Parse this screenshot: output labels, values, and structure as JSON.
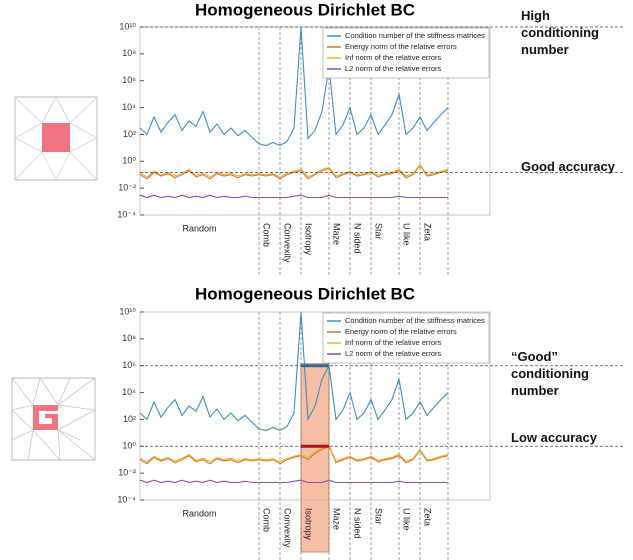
{
  "chart_data": [
    {
      "type": "line",
      "title": "Homogeneous Dirichlet BC",
      "ylog": true,
      "grid": false,
      "xlim": [
        0,
        100
      ],
      "ylim": [
        0.0001,
        10000000000
      ],
      "yticks": [
        {
          "value": 0.0001,
          "label": "10⁻⁴"
        },
        {
          "value": 0.01,
          "label": "10⁻²"
        },
        {
          "value": 1,
          "label": "10⁰"
        },
        {
          "value": 100,
          "label": "10²"
        },
        {
          "value": 10000,
          "label": "10⁴"
        },
        {
          "value": 1000000,
          "label": "10⁶"
        },
        {
          "value": 100000000,
          "label": "10⁸"
        },
        {
          "value": 10000000000,
          "label": "10¹⁰"
        }
      ],
      "legend": "top-right",
      "sections": {
        "labels": [
          "Random",
          "Comb",
          "Convexity",
          "Isotropy",
          "Maze",
          "N sided",
          "Star",
          "U like",
          "Zeta"
        ],
        "bounds": [
          34,
          40,
          46,
          54,
          60,
          66,
          74,
          80,
          88
        ]
      },
      "x": [
        0,
        2,
        4,
        6,
        8,
        10,
        12,
        14,
        16,
        18,
        20,
        22,
        24,
        26,
        28,
        30,
        32,
        34,
        36,
        38,
        40,
        42,
        44,
        46,
        48,
        50,
        52,
        54,
        56,
        58,
        60,
        62,
        64,
        66,
        68,
        70,
        72,
        74,
        76,
        78,
        80,
        82,
        84,
        86,
        88
      ],
      "series": [
        {
          "name": "Condition number of the stiffness matrices",
          "color": "#3d8ec4",
          "values": [
            300,
            100,
            2000,
            150,
            800,
            3000,
            200,
            1000,
            400,
            5000,
            150,
            600,
            100,
            300,
            80,
            200,
            60,
            20,
            15,
            25,
            15,
            30,
            300,
            10000000000,
            50,
            200,
            5000,
            10000000,
            100,
            500,
            10000,
            100,
            300,
            3000,
            100,
            500,
            3000,
            100000,
            100,
            300,
            2000,
            200,
            800,
            3000,
            10000
          ]
        },
        {
          "name": "Energy norm of the relative errors",
          "color": "#d9742b",
          "values": [
            0.1,
            0.05,
            0.15,
            0.08,
            0.12,
            0.06,
            0.1,
            0.2,
            0.07,
            0.1,
            0.05,
            0.12,
            0.08,
            0.1,
            0.06,
            0.1,
            0.08,
            0.1,
            0.08,
            0.1,
            0.05,
            0.1,
            0.15,
            0.2,
            0.05,
            0.1,
            0.2,
            0.3,
            0.06,
            0.1,
            0.15,
            0.08,
            0.1,
            0.15,
            0.07,
            0.1,
            0.12,
            0.2,
            0.06,
            0.1,
            0.5,
            0.08,
            0.1,
            0.15,
            0.2
          ]
        },
        {
          "name": "Inf norm of the relative errors",
          "color": "#e9b531",
          "values": [
            0.13,
            0.07,
            0.18,
            0.1,
            0.15,
            0.08,
            0.13,
            0.25,
            0.09,
            0.13,
            0.07,
            0.15,
            0.1,
            0.13,
            0.08,
            0.12,
            0.1,
            0.12,
            0.1,
            0.12,
            0.07,
            0.12,
            0.18,
            0.25,
            0.07,
            0.12,
            0.25,
            0.35,
            0.08,
            0.12,
            0.18,
            0.1,
            0.12,
            0.18,
            0.09,
            0.12,
            0.15,
            0.25,
            0.08,
            0.12,
            0.6,
            0.1,
            0.12,
            0.18,
            0.25
          ]
        },
        {
          "name": "L2 norm of the relative errors",
          "color": "#8e4bb0",
          "values": [
            0.003,
            0.002,
            0.003,
            0.002,
            0.0025,
            0.002,
            0.003,
            0.002,
            0.0025,
            0.002,
            0.003,
            0.002,
            0.0025,
            0.002,
            0.002,
            0.0025,
            0.002,
            0.002,
            0.002,
            0.002,
            0.002,
            0.002,
            0.0025,
            0.003,
            0.002,
            0.002,
            0.002,
            0.003,
            0.002,
            0.002,
            0.002,
            0.002,
            0.002,
            0.002,
            0.002,
            0.002,
            0.002,
            0.0025,
            0.002,
            0.002,
            0.002,
            0.002,
            0.002,
            0.002,
            0.002
          ]
        }
      ],
      "annotations": [
        {
          "text": "High conditioning number",
          "value": 10000000000
        },
        {
          "text": "Good accuracy",
          "value": 0.15
        }
      ]
    },
    {
      "type": "line",
      "title": "Homogeneous Dirichlet BC",
      "ylog": true,
      "grid": false,
      "xlim": [
        0,
        100
      ],
      "ylim": [
        0.0001,
        10000000000
      ],
      "yticks": [
        {
          "value": 0.0001,
          "label": "10⁻⁴"
        },
        {
          "value": 0.01,
          "label": "10⁻²"
        },
        {
          "value": 1,
          "label": "10⁰"
        },
        {
          "value": 100,
          "label": "10²"
        },
        {
          "value": 10000,
          "label": "10⁴"
        },
        {
          "value": 1000000,
          "label": "10⁶"
        },
        {
          "value": 100000000,
          "label": "10⁸"
        },
        {
          "value": 10000000000,
          "label": "10¹⁰"
        }
      ],
      "legend": "top-right",
      "sections": {
        "labels": [
          "Random",
          "Comb",
          "Convexity",
          "Isotropy",
          "Maze",
          "N sided",
          "Star",
          "U like",
          "Zeta"
        ],
        "bounds": [
          34,
          40,
          46,
          54,
          60,
          66,
          74,
          80,
          88
        ]
      },
      "x": [
        0,
        2,
        4,
        6,
        8,
        10,
        12,
        14,
        16,
        18,
        20,
        22,
        24,
        26,
        28,
        30,
        32,
        34,
        36,
        38,
        40,
        42,
        44,
        46,
        48,
        50,
        52,
        54,
        56,
        58,
        60,
        62,
        64,
        66,
        68,
        70,
        72,
        74,
        76,
        78,
        80,
        82,
        84,
        86,
        88
      ],
      "series": [
        {
          "name": "Condition number of the stiffness matrices",
          "color": "#3d8ec4",
          "values": [
            300,
            100,
            2000,
            150,
            800,
            3000,
            200,
            1000,
            400,
            5000,
            150,
            600,
            100,
            300,
            80,
            200,
            60,
            20,
            15,
            25,
            15,
            30,
            300,
            10000000000,
            100,
            1000,
            100000,
            1000000,
            100,
            500,
            10000,
            100,
            300,
            3000,
            100,
            500,
            3000,
            100000,
            100,
            300,
            2000,
            200,
            800,
            3000,
            10000
          ]
        },
        {
          "name": "Energy norm of the relative errors",
          "color": "#d9742b",
          "values": [
            0.1,
            0.05,
            0.15,
            0.08,
            0.12,
            0.06,
            0.1,
            0.2,
            0.07,
            0.1,
            0.05,
            0.12,
            0.08,
            0.1,
            0.06,
            0.1,
            0.08,
            0.1,
            0.08,
            0.1,
            0.05,
            0.1,
            0.15,
            0.2,
            0.1,
            0.3,
            0.6,
            1,
            0.06,
            0.1,
            0.15,
            0.08,
            0.1,
            0.15,
            0.07,
            0.1,
            0.12,
            0.2,
            0.06,
            0.1,
            0.5,
            0.08,
            0.1,
            0.15,
            0.2
          ]
        },
        {
          "name": "Inf norm of the relative errors",
          "color": "#e9b531",
          "values": [
            0.13,
            0.07,
            0.18,
            0.1,
            0.15,
            0.08,
            0.13,
            0.25,
            0.09,
            0.13,
            0.07,
            0.15,
            0.1,
            0.13,
            0.08,
            0.12,
            0.1,
            0.12,
            0.1,
            0.12,
            0.07,
            0.12,
            0.18,
            0.25,
            0.15,
            0.4,
            0.8,
            1.2,
            0.08,
            0.12,
            0.18,
            0.1,
            0.12,
            0.18,
            0.09,
            0.12,
            0.15,
            0.25,
            0.08,
            0.12,
            0.6,
            0.1,
            0.12,
            0.18,
            0.25
          ]
        },
        {
          "name": "L2 norm of the relative errors",
          "color": "#8e4bb0",
          "values": [
            0.003,
            0.002,
            0.003,
            0.002,
            0.0025,
            0.002,
            0.003,
            0.002,
            0.0025,
            0.002,
            0.003,
            0.002,
            0.0025,
            0.002,
            0.002,
            0.0025,
            0.002,
            0.002,
            0.002,
            0.002,
            0.002,
            0.002,
            0.0025,
            0.003,
            0.002,
            0.002,
            0.002,
            0.003,
            0.002,
            0.002,
            0.002,
            0.002,
            0.002,
            0.002,
            0.002,
            0.002,
            0.002,
            0.0025,
            0.002,
            0.002,
            0.002,
            0.002,
            0.002,
            0.002,
            0.002
          ]
        }
      ],
      "annotations": [
        {
          "text": "“Good” conditioning number",
          "value": 1000000
        },
        {
          "text": "Low accuracy",
          "value": 1
        }
      ],
      "highlight": {
        "xlim": [
          46,
          54
        ],
        "color": "#f6b89a",
        "bars": [
          {
            "value": 1000000,
            "color": "#2a6fb0"
          },
          {
            "value": 1,
            "color": "#d0021b"
          }
        ]
      }
    }
  ]
}
